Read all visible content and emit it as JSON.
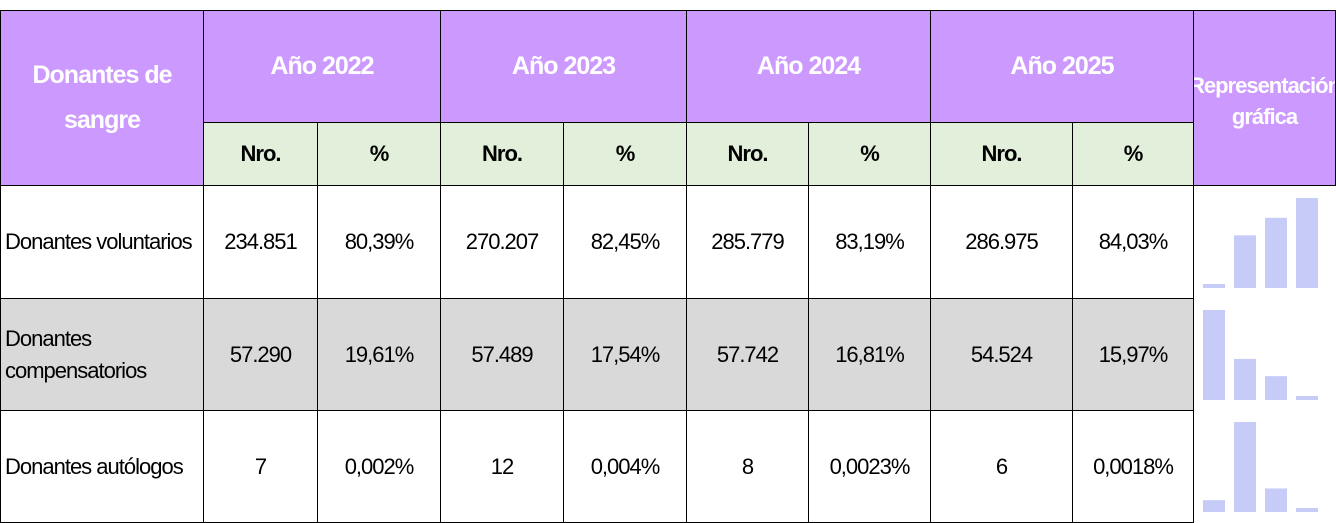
{
  "header": {
    "first": "Donantes de sangre",
    "years": [
      "Año 2022",
      "Año 2023",
      "Año 2024",
      "Año 2025"
    ],
    "sub": [
      "Nro.",
      "%"
    ],
    "chart": "Representación gráfica"
  },
  "table": {
    "rows": [
      {
        "label": "Donantes voluntarios",
        "cells": [
          "234.851",
          "80,39%",
          "270.207",
          "82,45%",
          "285.779",
          "83,19%",
          "286.975",
          "84,03%"
        ]
      },
      {
        "label": "Donantes compensatorios",
        "cells": [
          "57.290",
          "19,61%",
          "57.489",
          "17,54%",
          "57.742",
          "16,81%",
          "54.524",
          "15,97%"
        ]
      },
      {
        "label": "Donantes autólogos",
        "cells": [
          "7",
          "0,002%",
          "12",
          "0,004%",
          "8",
          "0,0023%",
          "6",
          "0,0018%"
        ]
      }
    ]
  }
}
